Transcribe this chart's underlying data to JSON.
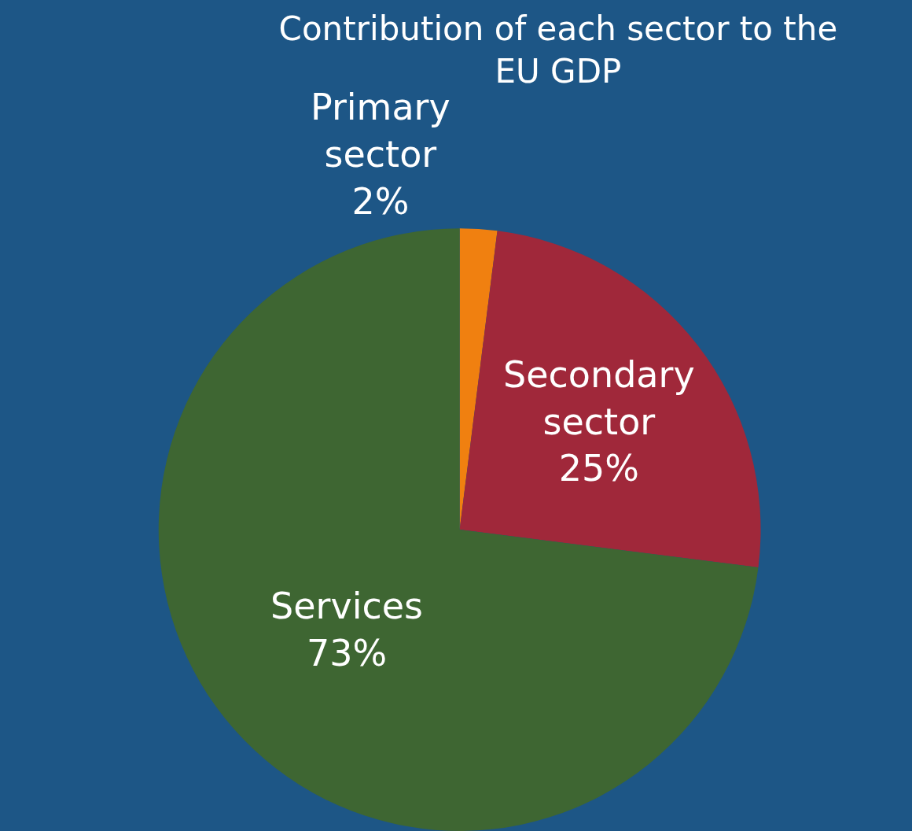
{
  "chart_data": {
    "type": "pie",
    "title": "Contribution of each sector to the EU GDP",
    "categories": [
      "Primary sector",
      "Secondary sector",
      "Services"
    ],
    "values": [
      2,
      25,
      73
    ],
    "value_labels": [
      "2%",
      "25%",
      "73%"
    ],
    "colors": [
      "#f08010",
      "#a0283a",
      "#3e6632"
    ],
    "legend": false
  }
}
